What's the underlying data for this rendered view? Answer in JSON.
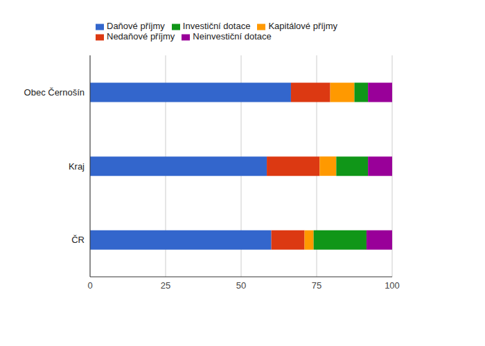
{
  "chart_data": {
    "type": "bar",
    "orientation": "horizontal",
    "stacked": true,
    "categories": [
      "Obec Černošín",
      "Kraj",
      "ČR"
    ],
    "series": [
      {
        "name": "Daňové příjmy",
        "color": "#3366cc",
        "values": [
          66.5,
          58.5,
          60
        ]
      },
      {
        "name": "Nedaňové příjmy",
        "color": "#dc3912",
        "values": [
          13,
          17.5,
          11
        ]
      },
      {
        "name": "Kapitálové příjmy",
        "color": "#ff9900",
        "values": [
          8,
          5.5,
          3
        ]
      },
      {
        "name": "Investiční dotace",
        "color": "#109618",
        "values": [
          4.5,
          10.5,
          17.5
        ]
      },
      {
        "name": "Neinvestiční dotace",
        "color": "#990099",
        "values": [
          8,
          8,
          8.5
        ]
      }
    ],
    "xlim": [
      0,
      100
    ],
    "xticks": [
      0,
      25,
      50,
      75,
      100
    ],
    "grid": true,
    "legend": "top"
  }
}
